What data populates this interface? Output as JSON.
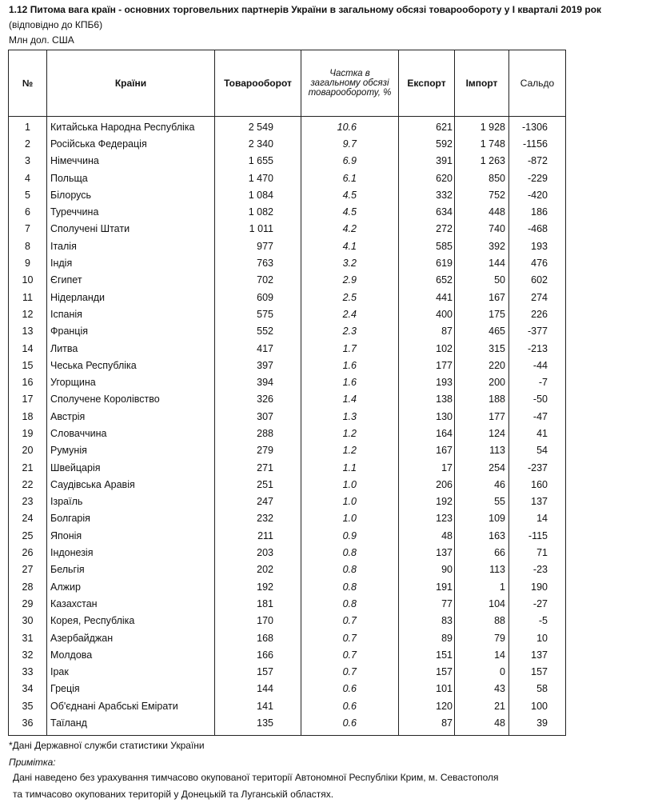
{
  "header": {
    "title": "1.12 Питома вага країн - основних торговельних партнерів України в загальному обсязі товарообороту у І кварталі 2019 рок",
    "subtitle": "(відповідно до КПБ6)",
    "units": "Млн дол. США"
  },
  "table": {
    "header": [
      "№",
      "Країни",
      "Товарооборот",
      "Частка в загальному обсязі товарообороту, %",
      "Експорт",
      "Імпорт",
      "Сальдо"
    ],
    "rows": [
      [
        "1",
        "Китайська Народна Республіка",
        "2 549",
        "10.6",
        "621",
        "1 928",
        "-1306"
      ],
      [
        "2",
        "Російська Федерація",
        "2 340",
        "9.7",
        "592",
        "1 748",
        "-1156"
      ],
      [
        "3",
        "Німеччина",
        "1 655",
        "6.9",
        "391",
        "1 263",
        "-872"
      ],
      [
        "4",
        "Польща",
        "1 470",
        "6.1",
        "620",
        "850",
        "-229"
      ],
      [
        "5",
        "Білорусь",
        "1 084",
        "4.5",
        "332",
        "752",
        "-420"
      ],
      [
        "6",
        "Туреччина",
        "1 082",
        "4.5",
        "634",
        "448",
        "186"
      ],
      [
        "7",
        "Сполучені Штати",
        "1 011",
        "4.2",
        "272",
        "740",
        "-468"
      ],
      [
        "8",
        "Італія",
        "977",
        "4.1",
        "585",
        "392",
        "193"
      ],
      [
        "9",
        "Індія",
        "763",
        "3.2",
        "619",
        "144",
        "476"
      ],
      [
        "10",
        "Єгипет",
        "702",
        "2.9",
        "652",
        "50",
        "602"
      ],
      [
        "11",
        "Нідерланди",
        "609",
        "2.5",
        "441",
        "167",
        "274"
      ],
      [
        "12",
        "Іспанія",
        "575",
        "2.4",
        "400",
        "175",
        "226"
      ],
      [
        "13",
        "Франція",
        "552",
        "2.3",
        "87",
        "465",
        "-377"
      ],
      [
        "14",
        "Литва",
        "417",
        "1.7",
        "102",
        "315",
        "-213"
      ],
      [
        "15",
        "Чеська Республіка",
        "397",
        "1.6",
        "177",
        "220",
        "-44"
      ],
      [
        "16",
        "Угорщина",
        "394",
        "1.6",
        "193",
        "200",
        "-7"
      ],
      [
        "17",
        "Сполучене Королівство",
        "326",
        "1.4",
        "138",
        "188",
        "-50"
      ],
      [
        "18",
        "Австрія",
        "307",
        "1.3",
        "130",
        "177",
        "-47"
      ],
      [
        "19",
        "Словаччина",
        "288",
        "1.2",
        "164",
        "124",
        "41"
      ],
      [
        "20",
        "Румунія",
        "279",
        "1.2",
        "167",
        "113",
        "54"
      ],
      [
        "21",
        "Швейцарія",
        "271",
        "1.1",
        "17",
        "254",
        "-237"
      ],
      [
        "22",
        "Саудівська Аравія",
        "251",
        "1.0",
        "206",
        "46",
        "160"
      ],
      [
        "23",
        "Ізраїль",
        "247",
        "1.0",
        "192",
        "55",
        "137"
      ],
      [
        "24",
        "Болгарія",
        "232",
        "1.0",
        "123",
        "109",
        "14"
      ],
      [
        "25",
        "Японія",
        "211",
        "0.9",
        "48",
        "163",
        "-115"
      ],
      [
        "26",
        "Індонезія",
        "203",
        "0.8",
        "137",
        "66",
        "71"
      ],
      [
        "27",
        "Бельгія",
        "202",
        "0.8",
        "90",
        "113",
        "-23"
      ],
      [
        "28",
        "Алжир",
        "192",
        "0.8",
        "191",
        "1",
        "190"
      ],
      [
        "29",
        "Казахстан",
        "181",
        "0.8",
        "77",
        "104",
        "-27"
      ],
      [
        "30",
        "Корея, Республіка",
        "170",
        "0.7",
        "83",
        "88",
        "-5"
      ],
      [
        "31",
        "Азербайджан",
        "168",
        "0.7",
        "89",
        "79",
        "10"
      ],
      [
        "32",
        "Молдова",
        "166",
        "0.7",
        "151",
        "14",
        "137"
      ],
      [
        "33",
        "Ірак",
        "157",
        "0.7",
        "157",
        "0",
        "157"
      ],
      [
        "34",
        "Греція",
        "144",
        "0.6",
        "101",
        "43",
        "58"
      ],
      [
        "35",
        "Об'єднані Арабські Емірати",
        "141",
        "0.6",
        "120",
        "21",
        "100"
      ],
      [
        "36",
        "Таїланд",
        "135",
        "0.6",
        "87",
        "48",
        "39"
      ]
    ]
  },
  "notes": {
    "source": "*Дані Державної служби статистики України",
    "label": "Примітка:",
    "lines": [
      "Дані наведено без урахування тимчасово окупованої території Автономної Республіки Крим, м. Севастополя",
      "та тимчасово окупованих територій у Донецькій та Луганській областях."
    ]
  }
}
